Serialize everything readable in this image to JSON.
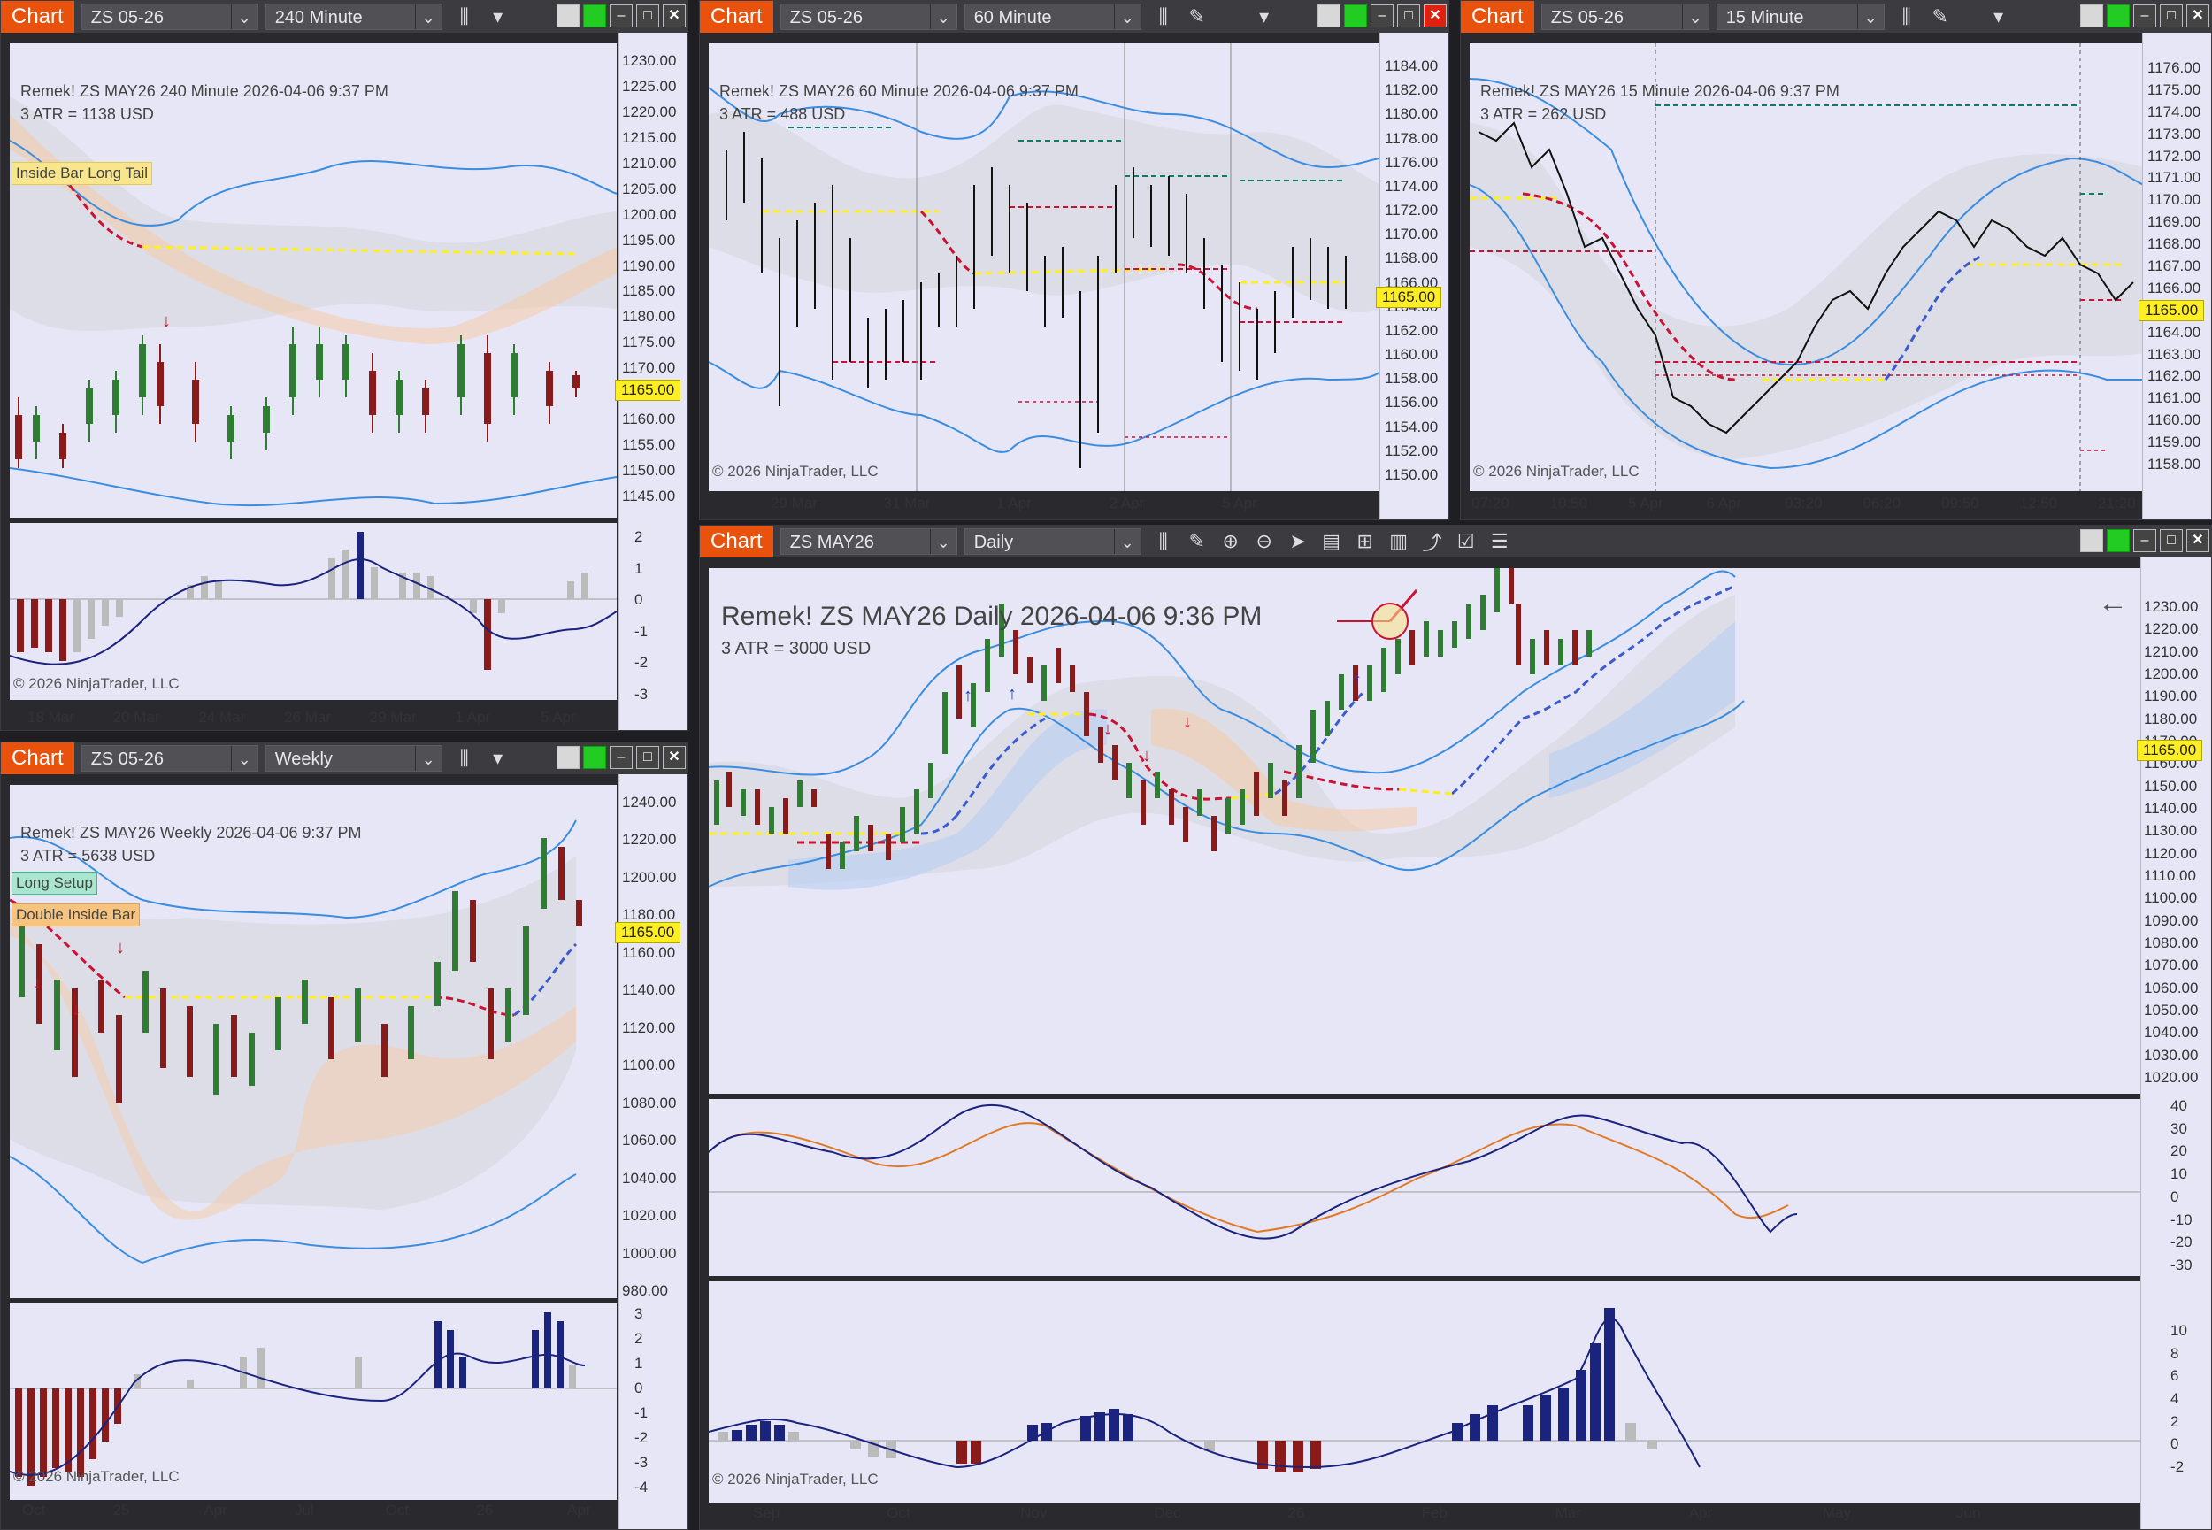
{
  "tab_label": "Chart",
  "copyright": "© 2026 NinjaTrader, LLC",
  "windows": {
    "w240": {
      "instrument": "ZS 05-26",
      "interval": "240 Minute",
      "title": "Remek!  ZS MAY26  240 Minute  2026-04-06 9:37 PM",
      "atr": "3 ATR = 1138 USD",
      "signal": "Inside Bar Long Tail",
      "price": "1165.00",
      "yticks": [
        "1230.00",
        "1225.00",
        "1220.00",
        "1215.00",
        "1210.00",
        "1205.00",
        "1200.00",
        "1195.00",
        "1190.00",
        "1185.00",
        "1180.00",
        "1175.00",
        "1170.00",
        "1165.00",
        "1160.00",
        "1155.00",
        "1150.00",
        "1145.00"
      ],
      "osc_ticks": [
        "2",
        "1",
        "0",
        "-1",
        "-2",
        "-3"
      ],
      "xticks": [
        "18 Mar",
        "20 Mar",
        "24 Mar",
        "26 Mar",
        "29 Mar",
        "1 Apr",
        "5 Apr"
      ]
    },
    "w60": {
      "instrument": "ZS 05-26",
      "interval": "60 Minute",
      "title": "Remek!  ZS MAY26  60 Minute  2026-04-06 9:37 PM",
      "atr": "3 ATR = 488 USD",
      "price": "1165.00",
      "yticks": [
        "1184.00",
        "1182.00",
        "1180.00",
        "1178.00",
        "1176.00",
        "1174.00",
        "1172.00",
        "1170.00",
        "1168.00",
        "1166.00",
        "1164.00",
        "1162.00",
        "1160.00",
        "1158.00",
        "1156.00",
        "1154.00",
        "1152.00",
        "1150.00"
      ],
      "xticks": [
        "29 Mar",
        "31 Mar",
        "1 Apr",
        "2 Apr",
        "5 Apr"
      ]
    },
    "w15": {
      "instrument": "ZS 05-26",
      "interval": "15 Minute",
      "title": "Remek!  ZS MAY26  15 Minute  2026-04-06 9:37 PM",
      "atr": "3 ATR = 262 USD",
      "price": "1165.00",
      "yticks": [
        "1176.00",
        "1175.00",
        "1174.00",
        "1173.00",
        "1172.00",
        "1171.00",
        "1170.00",
        "1169.00",
        "1168.00",
        "1167.00",
        "1166.00",
        "1165.00",
        "1164.00",
        "1163.00",
        "1162.00",
        "1161.00",
        "1160.00",
        "1159.00",
        "1158.00"
      ],
      "xticks": [
        "07:20",
        "10:50",
        "5 Apr",
        "6 Apr",
        "03:20",
        "06:20",
        "09:50",
        "12:50",
        "21:20"
      ]
    },
    "wWeekly": {
      "instrument": "ZS 05-26",
      "interval": "Weekly",
      "title": "Remek!  ZS MAY26  Weekly  2026-04-06 9:37 PM",
      "atr": "3 ATR = 5638 USD",
      "signals": [
        "Long Setup",
        "Double Inside Bar"
      ],
      "price": "1165.00",
      "yticks": [
        "1240.00",
        "1220.00",
        "1200.00",
        "1180.00",
        "1160.00",
        "1140.00",
        "1120.00",
        "1100.00",
        "1080.00",
        "1060.00",
        "1040.00",
        "1020.00",
        "1000.00",
        "980.00"
      ],
      "osc_ticks": [
        "3",
        "2",
        "1",
        "0",
        "-1",
        "-2",
        "-3",
        "-4"
      ],
      "xticks": [
        "Oct",
        "25",
        "Apr",
        "Jul",
        "Oct",
        "26",
        "Apr"
      ]
    },
    "wDaily": {
      "instrument": "ZS MAY26",
      "interval": "Daily",
      "title": "Remek!  ZS MAY26  Daily  2026-04-06 9:36 PM",
      "atr": "3 ATR = 3000 USD",
      "price": "1165.00",
      "yticks": [
        "1230.00",
        "1220.00",
        "1210.00",
        "1200.00",
        "1190.00",
        "1180.00",
        "1170.00",
        "1160.00",
        "1150.00",
        "1140.00",
        "1130.00",
        "1120.00",
        "1110.00",
        "1100.00",
        "1090.00",
        "1080.00",
        "1070.00",
        "1060.00",
        "1050.00",
        "1040.00",
        "1030.00",
        "1020.00"
      ],
      "osc1_ticks": [
        "40",
        "30",
        "20",
        "10",
        "0",
        "-10",
        "-20",
        "-30"
      ],
      "osc2_ticks": [
        "10",
        "8",
        "6",
        "4",
        "2",
        "0",
        "-2"
      ],
      "xticks": [
        "Sep",
        "Oct",
        "Nov",
        "Dec",
        "26",
        "Feb",
        "Mar",
        "Apr",
        "May",
        "Jun"
      ]
    }
  },
  "colors": {
    "tab": "#e8520c",
    "plot_bg": "#e6e6f7",
    "band": "#3a8de0",
    "up": "#2e7d32",
    "down": "#8b1a1a",
    "yellow": "#ffee22",
    "navy": "#1a237e"
  }
}
